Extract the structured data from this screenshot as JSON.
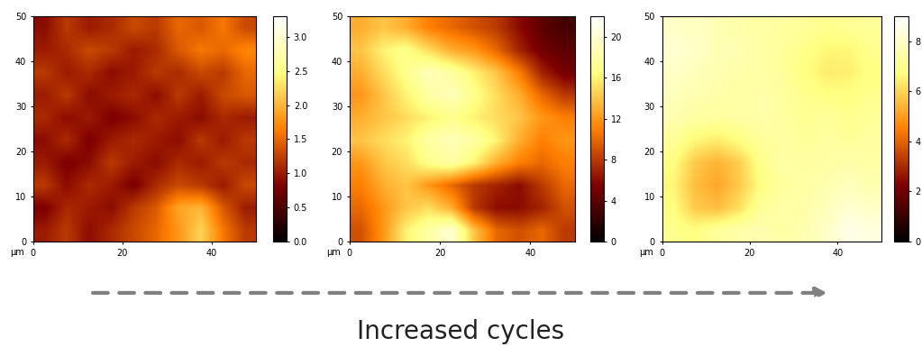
{
  "chart_data": [
    {
      "type": "heatmap",
      "xlabel": "µm",
      "xlim": [
        0,
        50
      ],
      "ylim": [
        0,
        50
      ],
      "xticks": [
        0,
        20,
        40
      ],
      "yticks": [
        0,
        10,
        20,
        30,
        40,
        50
      ],
      "cells": [
        [
          1.0,
          1.2,
          0.9,
          1.1,
          1.3,
          1.5,
          1.8,
          2.2,
          1.6,
          1.2
        ],
        [
          0.8,
          1.1,
          1.0,
          0.9,
          1.2,
          1.4,
          1.9,
          2.0,
          1.4,
          1.0
        ],
        [
          1.2,
          0.9,
          1.1,
          1.0,
          0.8,
          1.1,
          1.3,
          1.2,
          1.0,
          1.3
        ],
        [
          1.0,
          0.8,
          0.9,
          1.2,
          1.0,
          0.9,
          1.1,
          1.0,
          1.2,
          1.1
        ],
        [
          0.9,
          1.1,
          0.8,
          1.0,
          1.1,
          1.0,
          0.9,
          1.2,
          1.0,
          1.2
        ],
        [
          1.1,
          0.9,
          1.0,
          0.8,
          0.9,
          1.1,
          1.0,
          0.9,
          1.1,
          1.0
        ],
        [
          1.0,
          1.2,
          0.9,
          1.0,
          1.1,
          0.9,
          1.2,
          1.0,
          1.3,
          1.4
        ],
        [
          1.2,
          1.0,
          1.1,
          0.9,
          1.0,
          1.2,
          1.1,
          1.3,
          1.2,
          1.5
        ],
        [
          1.0,
          1.1,
          1.3,
          1.2,
          1.0,
          1.1,
          1.4,
          1.6,
          1.5,
          1.7
        ],
        [
          0.9,
          1.2,
          1.0,
          1.1,
          1.3,
          1.2,
          1.5,
          1.4,
          1.6,
          1.3
        ]
      ],
      "colorbar_range": [
        0,
        3.3
      ],
      "colorbar_ticks": [
        {
          "value": 0,
          "label": "0.0"
        },
        {
          "value": 0.5,
          "label": "0.5"
        },
        {
          "value": 1,
          "label": "1.0"
        },
        {
          "value": 1.5,
          "label": "1.5"
        },
        {
          "value": 2,
          "label": "2.0"
        },
        {
          "value": 2.5,
          "label": "2.5"
        },
        {
          "value": 3,
          "label": "3.0"
        }
      ]
    },
    {
      "type": "heatmap",
      "xlabel": "µm",
      "xlim": [
        0,
        50
      ],
      "ylim": [
        0,
        50
      ],
      "xticks": [
        0,
        20,
        40
      ],
      "yticks": [
        0,
        10,
        20,
        30,
        40,
        50
      ],
      "cells": [
        [
          9,
          12,
          16,
          18,
          20,
          14,
          10,
          9,
          10,
          8
        ],
        [
          10,
          12,
          14,
          15,
          13,
          8,
          6,
          6,
          7,
          9
        ],
        [
          11,
          13,
          14,
          12,
          10,
          8,
          7,
          6,
          8,
          10
        ],
        [
          12,
          14,
          15,
          17,
          18,
          16,
          13,
          11,
          10,
          11
        ],
        [
          14,
          15,
          16,
          18,
          19,
          18,
          16,
          13,
          11,
          12
        ],
        [
          13,
          14,
          15,
          16,
          17,
          16,
          15,
          14,
          12,
          11
        ],
        [
          12,
          14,
          16,
          18,
          19,
          17,
          15,
          13,
          10,
          8
        ],
        [
          13,
          15,
          17,
          19,
          18,
          16,
          14,
          11,
          7,
          5
        ],
        [
          14,
          16,
          17,
          15,
          13,
          12,
          10,
          7,
          5,
          4
        ],
        [
          13,
          14,
          13,
          11,
          10,
          9,
          8,
          6,
          4,
          3
        ]
      ],
      "colorbar_range": [
        0,
        22
      ],
      "colorbar_ticks": [
        0,
        4,
        8,
        12,
        16,
        20
      ]
    },
    {
      "type": "heatmap",
      "xlabel": "µm",
      "xlim": [
        0,
        50
      ],
      "ylim": [
        0,
        50
      ],
      "xticks": [
        0,
        20,
        40
      ],
      "yticks": [
        0,
        10,
        20,
        30,
        40,
        50
      ],
      "cells": [
        [
          7.0,
          6.8,
          7.2,
          7.5,
          7.6,
          7.4,
          7.6,
          8.0,
          8.6,
          8.4
        ],
        [
          6.8,
          5.8,
          5.6,
          6.2,
          7.2,
          7.4,
          7.5,
          7.8,
          8.2,
          8.0
        ],
        [
          6.6,
          5.6,
          5.2,
          5.8,
          6.8,
          7.3,
          7.4,
          7.6,
          7.8,
          7.6
        ],
        [
          6.8,
          5.8,
          5.4,
          5.9,
          7.0,
          7.4,
          7.3,
          7.4,
          7.5,
          7.4
        ],
        [
          7.2,
          6.6,
          6.4,
          6.8,
          7.2,
          7.3,
          7.2,
          7.3,
          7.2,
          7.3
        ],
        [
          7.6,
          7.4,
          7.3,
          7.4,
          7.5,
          7.3,
          7.1,
          7.2,
          7.0,
          7.2
        ],
        [
          7.8,
          7.6,
          7.5,
          7.4,
          7.5,
          7.3,
          7.0,
          6.8,
          6.8,
          7.0
        ],
        [
          8.0,
          7.8,
          7.6,
          7.5,
          7.4,
          7.2,
          6.8,
          6.4,
          6.5,
          6.8
        ],
        [
          8.2,
          8.0,
          7.7,
          7.6,
          7.4,
          7.2,
          6.9,
          6.6,
          6.6,
          7.0
        ],
        [
          8.0,
          7.9,
          7.7,
          7.5,
          7.4,
          7.3,
          7.2,
          7.0,
          7.1,
          7.2
        ]
      ],
      "colorbar_range": [
        0,
        9
      ],
      "colorbar_ticks": [
        0,
        2,
        4,
        6,
        8
      ]
    }
  ],
  "annotation": "Increased cycles"
}
